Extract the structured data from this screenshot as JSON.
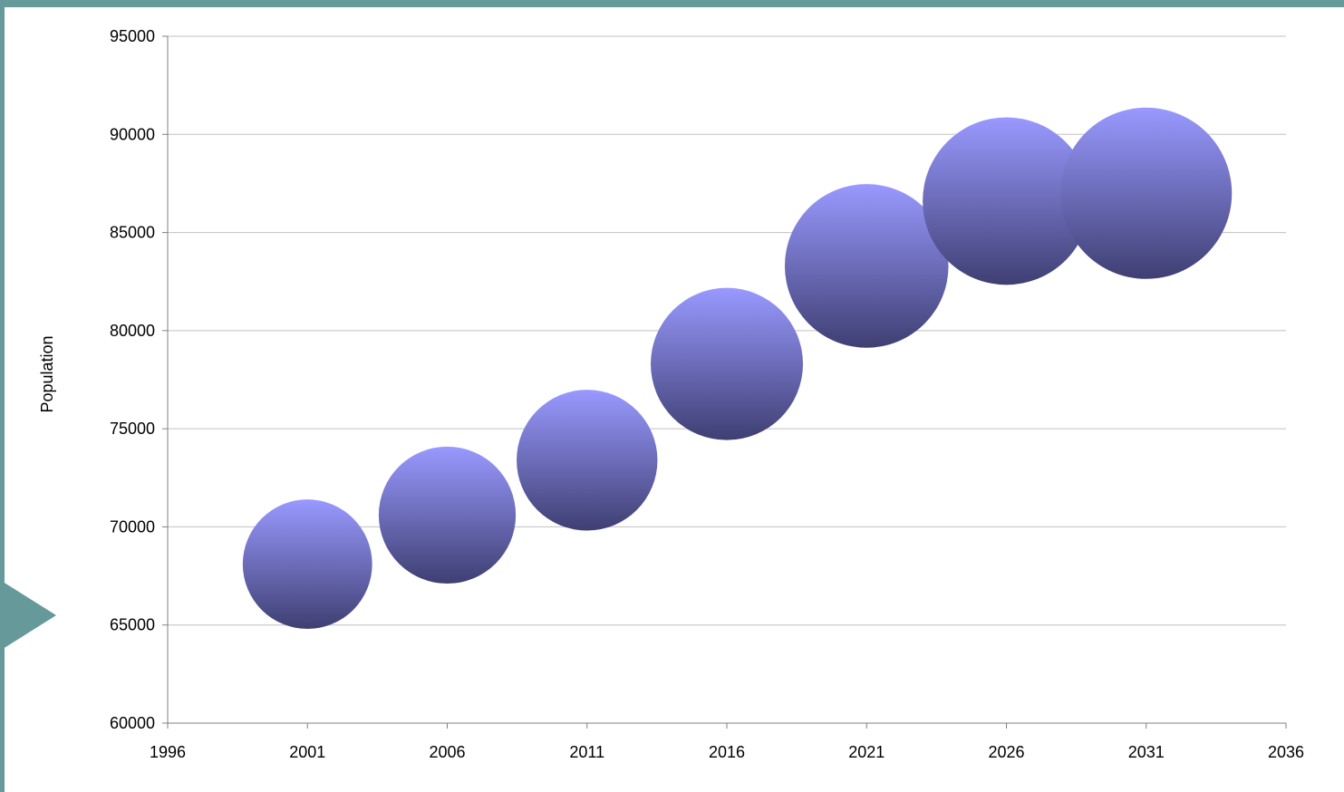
{
  "chart_data": {
    "type": "scatter",
    "ylabel": "Population",
    "xlim": [
      1996,
      2036
    ],
    "ylim": [
      60000,
      95000
    ],
    "x_ticks": [
      "1996",
      "2001",
      "2006",
      "2011",
      "2016",
      "2021",
      "2026",
      "2031",
      "2036"
    ],
    "y_ticks": [
      "95000",
      "90000",
      "85000",
      "80000",
      "75000",
      "70000",
      "65000",
      "60000"
    ],
    "grid": true,
    "legend": "none",
    "points": [
      {
        "x": 2001,
        "y": 68100,
        "size": 68
      },
      {
        "x": 2006,
        "y": 70600,
        "size": 72
      },
      {
        "x": 2011,
        "y": 73400,
        "size": 74
      },
      {
        "x": 2016,
        "y": 78300,
        "size": 80
      },
      {
        "x": 2021,
        "y": 83300,
        "size": 86
      },
      {
        "x": 2026,
        "y": 86600,
        "size": 88
      },
      {
        "x": 2031,
        "y": 87000,
        "size": 90
      }
    ],
    "colors": {
      "bubble_top": "#9999ff",
      "bubble_bottom": "#3f3f73",
      "grid": "#c0c0c0",
      "axis": "#808080",
      "frame": "#669999"
    }
  }
}
